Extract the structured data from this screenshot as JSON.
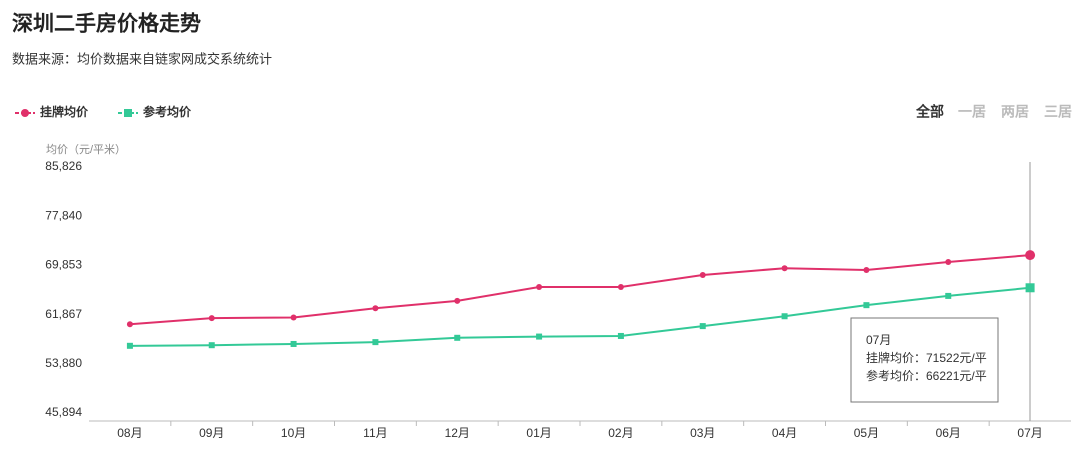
{
  "chart_data": {
    "type": "line",
    "title": "深圳二手房价格走势",
    "subtitle": "数据来源：均价数据来自链家网成交系统统计",
    "y_label": "均价（元/平米）",
    "tabs": [
      "全部",
      "一居",
      "两居",
      "三居"
    ],
    "categories": [
      "08月",
      "09月",
      "10月",
      "11月",
      "12月",
      "01月",
      "02月",
      "03月",
      "04月",
      "05月",
      "06月",
      "07月"
    ],
    "series": [
      {
        "name": "挂牌均价",
        "color": "#e0306a",
        "values": [
          60300,
          61300,
          61400,
          62900,
          64100,
          66350,
          66350,
          68300,
          69400,
          69100,
          70400,
          71522
        ]
      },
      {
        "name": "参考均价",
        "color": "#33c997",
        "values": [
          56800,
          56900,
          57100,
          57400,
          58100,
          58300,
          58400,
          60000,
          61600,
          63400,
          64900,
          66221
        ]
      }
    ],
    "ylim": [
      45894,
      85826
    ],
    "yticks": [
      {
        "value": 45894,
        "label": "45,894"
      },
      {
        "value": 53880,
        "label": "53,880"
      },
      {
        "value": 61867,
        "label": "61,867"
      },
      {
        "value": 69853,
        "label": "69,853"
      },
      {
        "value": 77840,
        "label": "77,840"
      },
      {
        "value": 85826,
        "label": "85,826"
      }
    ],
    "grid": false,
    "tooltip": {
      "title": "07月",
      "lines": [
        "挂牌均价：71522元/平",
        "参考均价：66221元/平"
      ]
    }
  }
}
